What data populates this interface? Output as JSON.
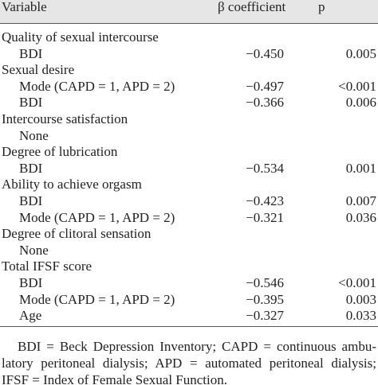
{
  "table": {
    "header": [
      "Variable",
      "β coefficient",
      "p"
    ],
    "groups": [
      {
        "title": "Quality of sexual intercourse",
        "rows": [
          [
            "BDI",
            "−0.450",
            "0.005"
          ]
        ]
      },
      {
        "title": "Sexual desire",
        "rows": [
          [
            "Mode (CAPD = 1, APD = 2)",
            "−0.497",
            "<0.001"
          ],
          [
            "BDI",
            "−0.366",
            "0.006"
          ]
        ]
      },
      {
        "title": "Intercourse satisfaction",
        "rows": [
          [
            "None"
          ]
        ]
      },
      {
        "title": "Degree of lubrication",
        "rows": [
          [
            "BDI",
            "−0.534",
            "0.001"
          ]
        ]
      },
      {
        "title": "Ability to achieve orgasm",
        "rows": [
          [
            "BDI",
            "−0.423",
            "0.007"
          ],
          [
            "Mode (CAPD = 1, APD = 2)",
            "−0.321",
            "0.036"
          ]
        ]
      },
      {
        "title": "Degree of clitoral sensation",
        "rows": [
          [
            "None"
          ]
        ]
      },
      {
        "title": "Total IFSF score",
        "rows": [
          [
            "BDI",
            "−0.546",
            "<0.001"
          ],
          [
            "Mode (CAPD = 1, APD = 2)",
            "−0.395",
            "0.003"
          ],
          [
            "Age",
            "−0.327",
            "0.033"
          ]
        ]
      }
    ],
    "footnote": [
      "BDI = Beck Depression Inventory; CAPD = continuous ambu-",
      "latory peritoneal dialysis; APD = automated peritoneal dialysis;",
      "IFSF = Index of Female Sexual Function."
    ]
  }
}
